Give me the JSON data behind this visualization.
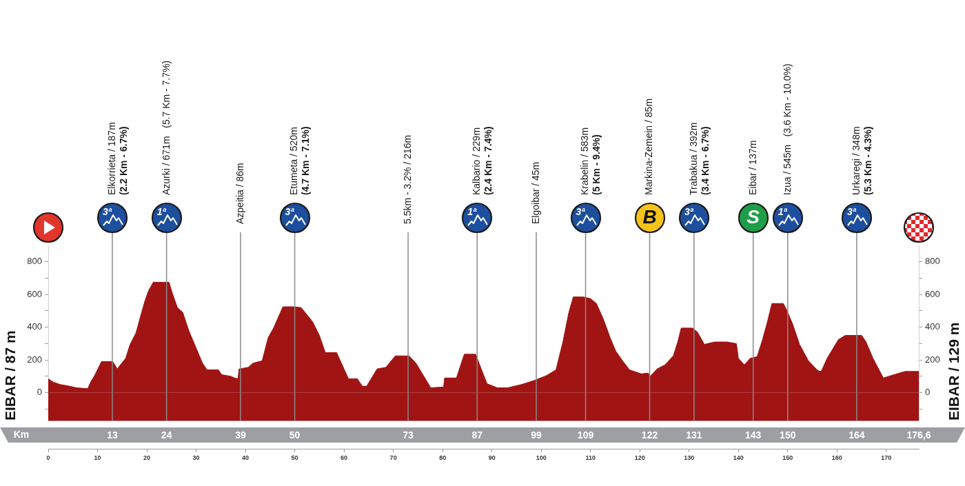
{
  "chart_data": {
    "type": "area",
    "color": "#a01414",
    "marker": "none",
    "x": [
      0,
      1,
      2.4,
      4.3,
      5.7,
      8,
      8.7,
      9.4,
      10.8,
      13.1,
      14,
      14.5,
      15.7,
      16.6,
      17.8,
      18.7,
      19.6,
      20.3,
      21.3,
      24.5,
      25.2,
      26.2,
      27.3,
      28.5,
      29.9,
      31.3,
      32.2,
      34.5,
      35.2,
      37.1,
      37.8,
      38.5,
      38.7,
      40.6,
      41.5,
      43.4,
      44.6,
      45.7,
      47.6,
      49.9,
      51.3,
      53.6,
      55,
      56.2,
      58.5,
      60.9,
      62.7,
      63.7,
      64.6,
      66.7,
      68.5,
      70.4,
      73.2,
      74.6,
      76,
      77.6,
      80.2,
      80.4,
      82.8,
      84.4,
      86.7,
      87.9,
      89,
      91.1,
      93.2,
      96,
      98.6,
      101.1,
      103,
      104.4,
      105.6,
      106.5,
      108.6,
      110,
      111.2,
      112.6,
      114,
      115.1,
      116.5,
      117.9,
      120.3,
      121.7,
      122.1,
      123.5,
      125.1,
      126.8,
      127.7,
      128.4,
      130.7,
      131.7,
      133.1,
      135.2,
      137.7,
      139.6,
      140,
      141.2,
      142.4,
      143.8,
      144.9,
      145.9,
      146.8,
      149.1,
      149.8,
      151,
      152.4,
      154.2,
      156.1,
      156.8,
      158,
      160.3,
      161.7,
      165,
      165.9,
      167.3,
      169.4,
      171,
      173.8,
      176.6
    ],
    "values": [
      85,
      65,
      50,
      40,
      30,
      25,
      70,
      105,
      190,
      190,
      145,
      165,
      210,
      295,
      365,
      465,
      560,
      620,
      675,
      675,
      605,
      520,
      490,
      380,
      280,
      180,
      140,
      140,
      110,
      100,
      90,
      85,
      145,
      155,
      180,
      195,
      335,
      395,
      525,
      525,
      520,
      435,
      350,
      245,
      245,
      85,
      85,
      40,
      40,
      145,
      155,
      225,
      225,
      180,
      110,
      30,
      35,
      90,
      90,
      235,
      235,
      140,
      55,
      30,
      30,
      50,
      75,
      105,
      140,
      310,
      490,
      585,
      585,
      575,
      545,
      450,
      335,
      255,
      195,
      140,
      115,
      120,
      100,
      145,
      170,
      225,
      310,
      395,
      395,
      370,
      295,
      310,
      310,
      300,
      210,
      170,
      210,
      220,
      325,
      435,
      545,
      545,
      505,
      420,
      295,
      195,
      135,
      130,
      210,
      325,
      350,
      350,
      310,
      210,
      90,
      105,
      130,
      130
    ],
    "xlim": [
      0,
      176.6
    ],
    "xticks": [
      0,
      10,
      20,
      30,
      40,
      50,
      60,
      70,
      80,
      90,
      100,
      110,
      120,
      130,
      140,
      150,
      160,
      170
    ],
    "x2lim": [
      0,
      176.6
    ],
    "x2label": "Km",
    "x2ticks": [
      13,
      24,
      39,
      50,
      73,
      87,
      99,
      109,
      122,
      131,
      143,
      150,
      164,
      {
        "value": 176.6,
        "label": "176,6"
      }
    ],
    "ylim": [
      -170,
      900
    ],
    "yticks": [
      {
        "value": -100,
        "label": null
      },
      0,
      {
        "value": 100,
        "label": null
      },
      200,
      {
        "value": 300,
        "label": null
      },
      400,
      {
        "value": 500,
        "label": null
      },
      600,
      {
        "value": 700,
        "label": null
      },
      800
    ],
    "y2lim": [
      -170,
      900
    ],
    "y2ticks": [
      {
        "value": -100,
        "label": null
      },
      0,
      {
        "value": 100,
        "label": null
      },
      200,
      {
        "value": 300,
        "label": null
      },
      400,
      {
        "value": 500,
        "label": null
      },
      600,
      {
        "value": 700,
        "label": null
      },
      800
    ],
    "ylabel": "EIBAR / 87 m",
    "y2label": "EIBAR / 129 m",
    "bands": [
      {
        "axis": "y",
        "from": -170,
        "to": 0,
        "color": "#a01414"
      }
    ],
    "ref_lines": [
      {
        "axis": "x",
        "value": 13,
        "label": "Elkorrieta / 187m\n(2.2 Km - 6.7%)"
      },
      {
        "axis": "x",
        "value": 24,
        "label": "Azurki / 671m   (5.7 Km - 7.7%)"
      },
      {
        "axis": "x",
        "value": 39,
        "label": "Azpeitia / 86m"
      },
      {
        "axis": "x",
        "value": 50,
        "label": "Etumeta / 520m\n(4.7 Km - 7.1%)"
      },
      {
        "axis": "x",
        "value": 73,
        "label": "5.5km - 3.2% / 216m"
      },
      {
        "axis": "x",
        "value": 87,
        "label": "Kalbario / 229m\n(2.4 Km - 7.4%)"
      },
      {
        "axis": "x",
        "value": 99,
        "label": "Elgoibar / 45m"
      },
      {
        "axis": "x",
        "value": 109,
        "label": "Krabelin / 583m\n(5 Km - 9.4%)"
      },
      {
        "axis": "x",
        "value": 122,
        "label": "Markina-Zemein / 85m"
      },
      {
        "axis": "x",
        "value": 131,
        "label": "Trabakua / 392m\n(3.4 Km - 6.7%)"
      },
      {
        "axis": "x",
        "value": 143,
        "label": "Eibar / 137m"
      },
      {
        "axis": "x",
        "value": 150,
        "label": "Izua / 545m   (3.6 Km - 10.0%)"
      },
      {
        "axis": "x",
        "value": 164,
        "label": "Urkaregi / 348m\n(5.3 Km - 4.3%)"
      }
    ],
    "annotations": [
      "3ª",
      "1ª",
      "3ª",
      "1ª",
      "3ª",
      "B",
      "3ª",
      "S",
      "1ª",
      "3ª"
    ]
  }
}
